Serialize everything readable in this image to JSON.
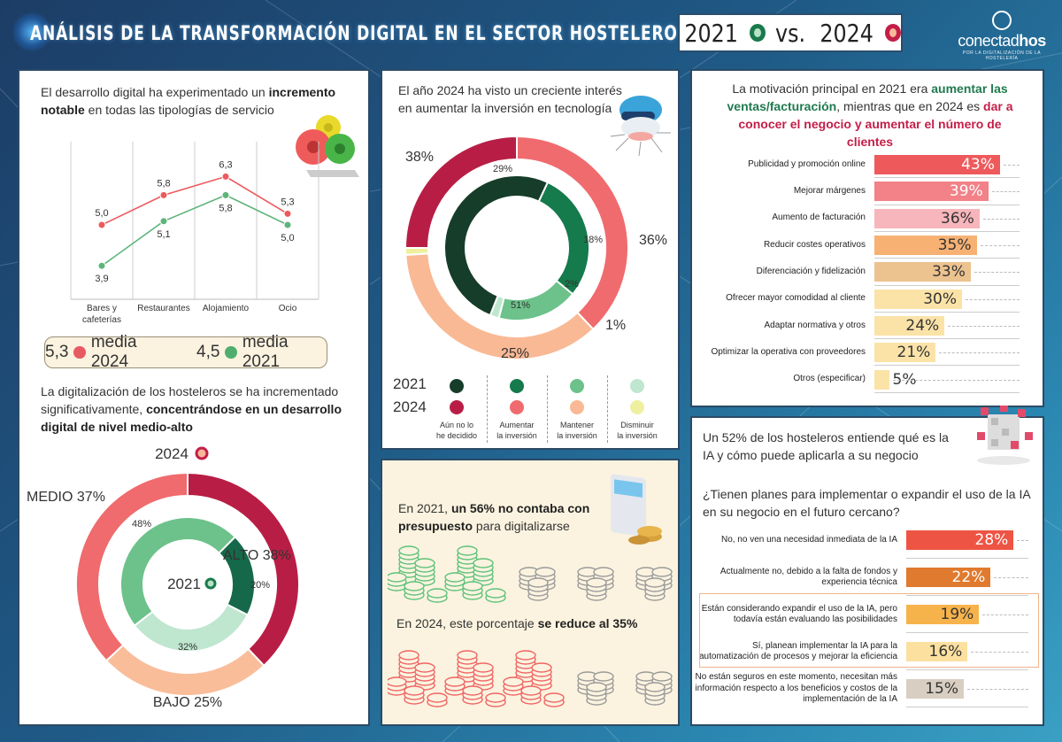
{
  "header": {
    "title": "ANÁLISIS DE LA TRANSFORMACIÓN DIGITAL EN EL SECTOR HOSTELERO",
    "compare_2021": "2021",
    "compare_vs": "vs.",
    "compare_2024": "2024",
    "logo_name_a": "conectad",
    "logo_name_b": "hos",
    "logo_tagline": "POR LA DIGITALIZACIÓN DE LA HOSTELERÍA",
    "colors": {
      "c2021": "#1a7a4c",
      "c2024": "#c41e48"
    }
  },
  "panel_development": {
    "heading_a": "El desarrollo digital ha experimentado un ",
    "heading_b": "incremento notable",
    "heading_c": " en todas las tipologías de servicio",
    "avg_2024_value": "5,3",
    "avg_2024_label": "media 2024",
    "avg_2021_value": "4,5",
    "avg_2021_label": "media 2021"
  },
  "panel_level": {
    "heading_a": "La digitalización de los hosteleros se ha incrementado significativamente, ",
    "heading_b": "concentrándose en un desarrollo digital de nivel medio-alto",
    "year_2024": "2024",
    "year_2021": "2021"
  },
  "panel_investment": {
    "heading": "El año 2024 ha visto un creciente interés en aumentar la inversión en tecnología",
    "legend_year_2021": "2021",
    "legend_year_2024": "2024",
    "legend_items": [
      {
        "label_1": "Aún no lo",
        "label_2": "he decidido",
        "c2021": "#163d2a",
        "c2024": "#b81e45"
      },
      {
        "label_1": "Aumentar",
        "label_2": "la inversión",
        "c2021": "#157a4c",
        "c2024": "#f06b6e"
      },
      {
        "label_1": "Mantener",
        "label_2": "la inversión",
        "c2021": "#6cc28a",
        "c2024": "#f9b995"
      },
      {
        "label_1": "Disminuir",
        "label_2": "la inversión",
        "c2021": "#bfe6cf",
        "c2024": "#eef0a0"
      }
    ]
  },
  "panel_budget": {
    "text_2021_a": "En 2021, ",
    "text_2021_b": "un 56% no contaba con presupuesto",
    "text_2021_c": " para digitalizarse",
    "text_2024_a": "En 2024, este porcentaje ",
    "text_2024_b": "se reduce al 35%",
    "coins_2021_colored": 2,
    "coins_2024_colored": 3,
    "coins_total": 5
  },
  "panel_motivation": {
    "heading_a": "La motivación principal en 2021 era ",
    "heading_b": "aumentar las ventas/facturación",
    "heading_c": ", mientras que en 2024 es ",
    "heading_d": "dar a conocer el negocio y aumentar el número de clientes"
  },
  "panel_ai": {
    "heading": "Un 52% de los hosteleros entiende qué es la IA y cómo puede aplicarla a su negocio",
    "question": "¿Tienen planes para implementar o expandir el uso de la IA en su negocio en el futuro cercano?"
  },
  "chart_data": [
    {
      "type": "line",
      "title": "Desarrollo digital por tipología de servicio",
      "categories": [
        "Bares y cafeterías",
        "Restaurantes",
        "Alojamiento",
        "Ocio"
      ],
      "series": [
        {
          "name": "2024",
          "values": [
            5.0,
            5.8,
            6.3,
            5.3
          ],
          "labels": [
            "5,0",
            "5,8",
            "6,3",
            "5,3"
          ],
          "color": "#ec5a5e"
        },
        {
          "name": "2021",
          "values": [
            3.9,
            5.1,
            5.8,
            5.0
          ],
          "labels": [
            "3,9",
            "5,1",
            "5,8",
            "5,0"
          ],
          "color": "#5db57a"
        }
      ],
      "ylim": [
        3,
        7
      ],
      "grid": "vertical"
    },
    {
      "type": "pie",
      "title": "Nivel de desarrollo digital",
      "series": [
        {
          "name": "2024",
          "categories": [
            "ALTO",
            "BAJO",
            "MEDIO"
          ],
          "values": [
            38,
            25,
            37
          ],
          "labels": [
            "ALTO 38%",
            "BAJO 25%",
            "MEDIO 37%"
          ],
          "colors": [
            "#b81e45",
            "#f9bd9a",
            "#ef6b6d"
          ]
        },
        {
          "name": "2021",
          "categories": [
            "ALTO",
            "BAJO",
            "MEDIO"
          ],
          "values": [
            20,
            32,
            48
          ],
          "labels": [
            "20%",
            "32%",
            "48%"
          ],
          "colors": [
            "#15694a",
            "#bfe6cf",
            "#6cc28a"
          ]
        }
      ]
    },
    {
      "type": "pie",
      "title": "Intención de inversión en tecnología",
      "series": [
        {
          "name": "2024",
          "categories": [
            "Aumentar la inversión",
            "Mantener la inversión",
            "Disminuir la inversión",
            "Aún no lo he decidido"
          ],
          "values": [
            38,
            36,
            1,
            25
          ],
          "labels": [
            "38%",
            "36%",
            "1%",
            "25%"
          ],
          "colors": [
            "#f06b6e",
            "#f9b995",
            "#eef0a0",
            "#b81e45"
          ]
        },
        {
          "name": "2021",
          "categories": [
            "Aumentar la inversión",
            "Mantener la inversión",
            "Disminuir la inversión",
            "Aún no lo he decidido"
          ],
          "values": [
            29,
            18,
            2,
            51
          ],
          "labels": [
            "29%",
            "18%",
            "2%",
            "51%"
          ],
          "colors": [
            "#157a4c",
            "#6cc28a",
            "#bfe6cf",
            "#163d2a"
          ]
        }
      ]
    },
    {
      "type": "bar",
      "orientation": "horizontal",
      "title": "Motivación principal",
      "categories": [
        "Publicidad y promoción online",
        "Mejorar márgenes",
        "Aumento de facturación",
        "Reducir costes operativos",
        "Diferenciación y fidelización",
        "Ofrecer mayor comodidad al cliente",
        "Adaptar normativa y otros",
        "Optimizar la operativa con proveedores",
        "Otros (especificar)"
      ],
      "values": [
        43,
        39,
        36,
        35,
        33,
        30,
        24,
        21,
        5
      ],
      "labels": [
        "43%",
        "39%",
        "36%",
        "35%",
        "33%",
        "30%",
        "24%",
        "21%",
        "5%"
      ],
      "colors": [
        "#ee5a5c",
        "#f28188",
        "#f7b6bb",
        "#f7b173",
        "#ecc28e",
        "#fbe3a8",
        "#fbe3a8",
        "#fbe3a8",
        "#fbe3a8"
      ],
      "text_dark": [
        false,
        false,
        true,
        true,
        true,
        true,
        true,
        true,
        true
      ],
      "xlim": [
        0,
        50
      ]
    },
    {
      "type": "bar",
      "orientation": "horizontal",
      "title": "¿Tienen planes para implementar o expandir el uso de la IA en su negocio en el futuro cercano?",
      "categories": [
        "No, no ven una necesidad inmediata de la IA",
        "Actualmente no, debido a la falta de fondos y experiencia técnica",
        "Están considerando expandir el uso de la IA, pero todavía están evaluando las posibilidades",
        "Sí, planean implementar la IA para la automatización de procesos y mejorar la eficiencia",
        "No están seguros en este momento, necesitan más información respecto a los beneficios y costos de la implementación de la IA"
      ],
      "values": [
        28,
        22,
        19,
        16,
        15
      ],
      "labels": [
        "28%",
        "22%",
        "19%",
        "16%",
        "15%"
      ],
      "colors": [
        "#ee5444",
        "#e07a2e",
        "#f7b34b",
        "#fbe0a0",
        "#d8cfc2"
      ],
      "text_dark": [
        false,
        false,
        true,
        true,
        true
      ],
      "highlighted": [
        false,
        false,
        true,
        true,
        false
      ],
      "xlim": [
        0,
        30
      ]
    }
  ]
}
